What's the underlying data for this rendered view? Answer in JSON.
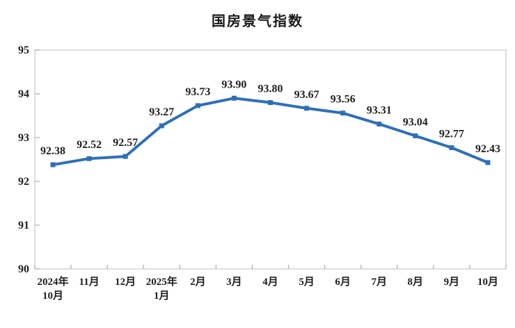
{
  "page": {
    "background": "#ffffff"
  },
  "chart_data": {
    "type": "line",
    "title": "国房景气指数",
    "xlabel": "",
    "ylabel": "",
    "categories": [
      [
        "2024年",
        "10月"
      ],
      [
        "11月"
      ],
      [
        "12月"
      ],
      [
        "2025年",
        "1月"
      ],
      [
        "2月"
      ],
      [
        "3月"
      ],
      [
        "4月"
      ],
      [
        "5月"
      ],
      [
        "6月"
      ],
      [
        "7月"
      ],
      [
        "8月"
      ],
      [
        "9月"
      ],
      [
        "10月"
      ]
    ],
    "series": [
      {
        "name": "国房景气指数",
        "values": [
          92.38,
          92.52,
          92.57,
          93.27,
          93.73,
          93.9,
          93.8,
          93.67,
          93.56,
          93.31,
          93.04,
          92.77,
          92.43
        ],
        "point_labels": [
          "92.38",
          "92.52",
          "92.57",
          "93.27",
          "93.73",
          "93.90",
          "93.80",
          "93.67",
          "93.56",
          "93.31",
          "93.04",
          "92.77",
          "92.43"
        ]
      }
    ],
    "ylim": [
      90,
      95
    ],
    "yticks": [
      "90",
      "91",
      "92",
      "93",
      "94",
      "95"
    ],
    "grid": false,
    "legend_position": "none",
    "colors": {
      "line": "#2E6FB8",
      "marker": "#2E6FB8",
      "plot_border": "#C9C9C9",
      "tick_mark": "#ADADAD",
      "data_label_text": "#1F1F1F",
      "axis_label_text": "#1F1F1F",
      "title_text": "#1A1A1A"
    }
  }
}
